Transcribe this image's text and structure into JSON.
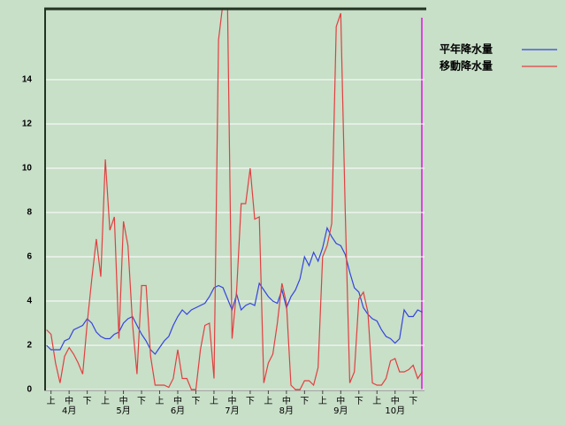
{
  "chart_data": {
    "type": "line",
    "categories": [
      null,
      "上",
      null,
      null,
      null,
      "中",
      null,
      null,
      null,
      "下",
      null,
      null,
      null,
      "上",
      null,
      null,
      null,
      "中",
      null,
      null,
      null,
      "下",
      null,
      null,
      null,
      "上",
      null,
      null,
      null,
      "中",
      null,
      null,
      null,
      "下",
      null,
      null,
      null,
      "上",
      null,
      null,
      null,
      "中",
      null,
      null,
      null,
      "下",
      null,
      null,
      null,
      "上",
      null,
      null,
      null,
      "中",
      null,
      null,
      null,
      "下",
      null,
      null,
      null,
      "上",
      null,
      null,
      null,
      "中",
      null,
      null,
      null,
      "下",
      null,
      null,
      null,
      "上",
      null,
      null,
      null,
      "中",
      null,
      null,
      null,
      "下",
      null,
      null
    ],
    "months": [
      null,
      null,
      null,
      null,
      null,
      "4月",
      null,
      null,
      null,
      null,
      null,
      null,
      null,
      null,
      null,
      null,
      null,
      "5月",
      null,
      null,
      null,
      null,
      null,
      null,
      null,
      null,
      null,
      null,
      null,
      "6月",
      null,
      null,
      null,
      null,
      null,
      null,
      null,
      null,
      null,
      null,
      null,
      "7月",
      null,
      null,
      null,
      null,
      null,
      null,
      null,
      null,
      null,
      null,
      null,
      "8月",
      null,
      null,
      null,
      null,
      null,
      null,
      null,
      null,
      null,
      null,
      null,
      "9月",
      null,
      null,
      null,
      null,
      null,
      null,
      null,
      null,
      null,
      null,
      null,
      "10月",
      null,
      null,
      null,
      null,
      null,
      null
    ],
    "series": [
      {
        "name": "平年降水量",
        "color": "#3344dd",
        "values": [
          2.0,
          1.8,
          1.8,
          1.8,
          2.2,
          2.3,
          2.7,
          2.8,
          2.9,
          3.2,
          3.0,
          2.6,
          2.4,
          2.3,
          2.3,
          2.5,
          2.6,
          3.0,
          3.2,
          3.3,
          2.9,
          2.5,
          2.2,
          1.8,
          1.6,
          1.9,
          2.2,
          2.4,
          2.9,
          3.3,
          3.6,
          3.4,
          3.6,
          3.7,
          3.8,
          3.9,
          4.2,
          4.6,
          4.7,
          4.6,
          4.1,
          3.6,
          4.3,
          3.6,
          3.8,
          3.9,
          3.8,
          4.8,
          4.5,
          4.2,
          4.0,
          3.9,
          4.5,
          3.7,
          4.2,
          4.5,
          5.0,
          6.0,
          5.6,
          6.2,
          5.8,
          6.4,
          7.3,
          6.9,
          6.6,
          6.5,
          6.1,
          5.3,
          4.6,
          4.4,
          3.7,
          3.4,
          3.2,
          3.1,
          2.7,
          2.4,
          2.3,
          2.1,
          2.3,
          3.6,
          3.3,
          3.3,
          3.6,
          3.5
        ]
      },
      {
        "name": "移動降水量",
        "color": "#e04040",
        "values": [
          2.7,
          2.5,
          1.2,
          0.3,
          1.5,
          1.9,
          1.6,
          1.2,
          0.7,
          3.0,
          5.0,
          6.8,
          5.1,
          10.4,
          7.2,
          7.8,
          2.3,
          7.6,
          6.5,
          3.0,
          0.7,
          4.7,
          4.7,
          1.5,
          0.2,
          0.2,
          0.2,
          0.1,
          0.5,
          1.8,
          0.5,
          0.5,
          0,
          0,
          1.8,
          2.9,
          3.0,
          0.5,
          15.8,
          17.5,
          17.3,
          2.3,
          4.5,
          8.4,
          8.4,
          10.0,
          7.7,
          7.8,
          0.3,
          1.2,
          1.6,
          3.0,
          4.8,
          3.9,
          0.2,
          0,
          0,
          0.4,
          0.4,
          0.2,
          1.0,
          6.0,
          6.5,
          7.5,
          16.4,
          17.0,
          8.0,
          0.3,
          0.8,
          4.1,
          4.4,
          3.5,
          0.3,
          0.2,
          0.2,
          0.5,
          1.3,
          1.4,
          0.8,
          0.8,
          0.9,
          1.1,
          0.5,
          0.8
        ]
      }
    ],
    "ylim": [
      0,
      17.2
    ],
    "yticks": [
      0,
      2,
      4,
      6,
      8,
      10,
      12,
      14
    ],
    "grid": true
  }
}
